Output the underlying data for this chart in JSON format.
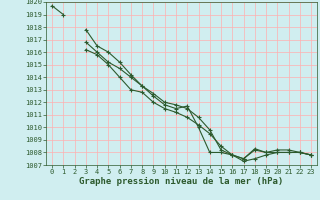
{
  "xlabel": "Graphe pression niveau de la mer (hPa)",
  "xlim": [
    -0.5,
    23.5
  ],
  "ylim": [
    1007,
    1020
  ],
  "yticks": [
    1007,
    1008,
    1009,
    1010,
    1011,
    1012,
    1013,
    1014,
    1015,
    1016,
    1017,
    1018,
    1019,
    1020
  ],
  "xticks": [
    0,
    1,
    2,
    3,
    4,
    5,
    6,
    7,
    8,
    9,
    10,
    11,
    12,
    13,
    14,
    15,
    16,
    17,
    18,
    19,
    20,
    21,
    22,
    23
  ],
  "bg_color": "#d0eef0",
  "grid_color": "#ffb0b0",
  "line_color": "#2d5a2d",
  "line_width": 0.8,
  "marker": "+",
  "marker_size": 3,
  "marker_edge_width": 0.8,
  "series": [
    [
      1019.7,
      1019.0,
      null,
      1017.8,
      1016.5,
      1016.0,
      1015.2,
      1014.2,
      1013.3,
      1012.5,
      1011.8,
      1011.5,
      1011.7,
      1010.0,
      1008.0,
      1008.0,
      1007.8,
      1007.5,
      null,
      null,
      null,
      null,
      null,
      null
    ],
    [
      null,
      null,
      null,
      1016.8,
      1016.0,
      1015.2,
      1014.7,
      1014.0,
      1013.3,
      1012.7,
      1012.0,
      1011.8,
      1011.5,
      1010.8,
      1009.8,
      1008.2,
      1007.8,
      1007.5,
      1008.2,
      1008.0,
      1008.0,
      1008.0,
      1008.0,
      1007.8
    ],
    [
      null,
      null,
      null,
      1016.2,
      1015.8,
      1015.0,
      1014.0,
      1013.0,
      1012.8,
      1012.0,
      1011.5,
      1011.2,
      1010.8,
      1010.2,
      1009.5,
      1008.5,
      1007.8,
      1007.3,
      1007.5,
      1007.8,
      1008.0,
      1008.0,
      1008.0,
      1007.8
    ],
    [
      null,
      null,
      null,
      null,
      null,
      null,
      null,
      null,
      null,
      null,
      null,
      null,
      null,
      null,
      null,
      null,
      null,
      1007.5,
      1008.3,
      1008.0,
      1008.2,
      1008.2,
      1008.0,
      1007.8
    ]
  ],
  "font_color": "#2d5a2d",
  "xlabel_fontsize": 6.5,
  "tick_fontsize": 5.0
}
